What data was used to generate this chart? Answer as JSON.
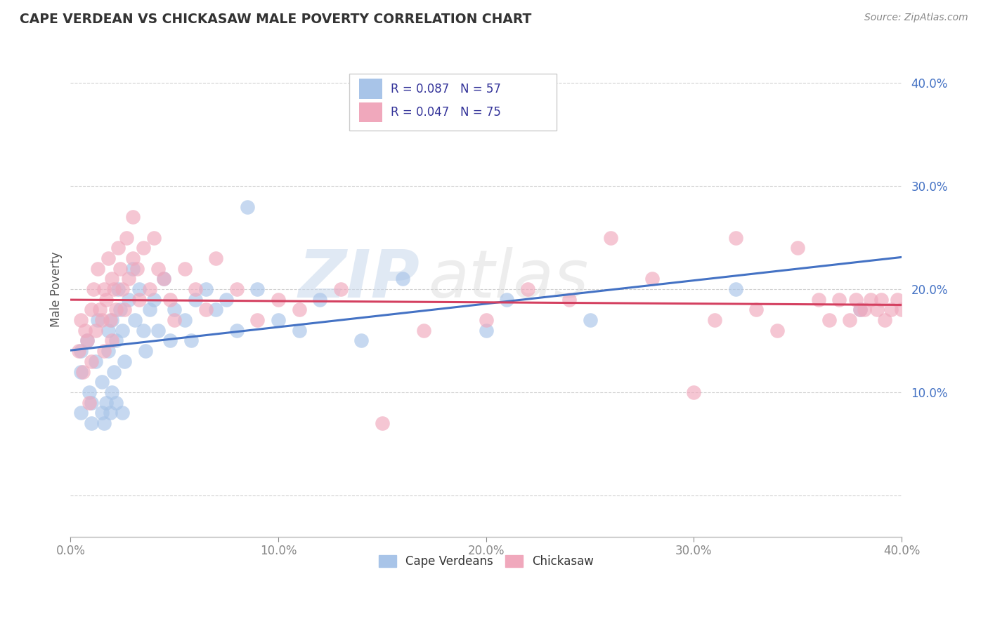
{
  "title": "CAPE VERDEAN VS CHICKASAW MALE POVERTY CORRELATION CHART",
  "source": "Source: ZipAtlas.com",
  "ylabel": "Male Poverty",
  "xlim": [
    0.0,
    0.4
  ],
  "ylim": [
    -0.04,
    0.44
  ],
  "yticks": [
    0.0,
    0.1,
    0.2,
    0.3,
    0.4
  ],
  "xticks": [
    0.0,
    0.1,
    0.2,
    0.3,
    0.4
  ],
  "xtick_labels": [
    "0.0%",
    "10.0%",
    "20.0%",
    "30.0%",
    "40.0%"
  ],
  "ytick_labels": [
    "",
    "10.0%",
    "20.0%",
    "30.0%",
    "40.0%"
  ],
  "label1": "Cape Verdeans",
  "label2": "Chickasaw",
  "color1": "#a8c4e8",
  "color2": "#f0a8bc",
  "line_color1": "#4472c4",
  "line_color2": "#d44060",
  "watermark_zip": "ZIP",
  "watermark_atlas": "atlas",
  "background_color": "#ffffff",
  "grid_color": "#cccccc",
  "blue_x": [
    0.005,
    0.005,
    0.005,
    0.008,
    0.009,
    0.01,
    0.01,
    0.012,
    0.013,
    0.015,
    0.015,
    0.016,
    0.017,
    0.018,
    0.018,
    0.019,
    0.02,
    0.02,
    0.021,
    0.022,
    0.022,
    0.023,
    0.024,
    0.025,
    0.025,
    0.026,
    0.028,
    0.03,
    0.031,
    0.033,
    0.035,
    0.036,
    0.038,
    0.04,
    0.042,
    0.045,
    0.048,
    0.05,
    0.055,
    0.058,
    0.06,
    0.065,
    0.07,
    0.075,
    0.08,
    0.085,
    0.09,
    0.1,
    0.11,
    0.12,
    0.14,
    0.16,
    0.2,
    0.21,
    0.25,
    0.32,
    0.38
  ],
  "blue_y": [
    0.14,
    0.12,
    0.08,
    0.15,
    0.1,
    0.07,
    0.09,
    0.13,
    0.17,
    0.08,
    0.11,
    0.07,
    0.09,
    0.16,
    0.14,
    0.08,
    0.1,
    0.17,
    0.12,
    0.15,
    0.09,
    0.2,
    0.18,
    0.16,
    0.08,
    0.13,
    0.19,
    0.22,
    0.17,
    0.2,
    0.16,
    0.14,
    0.18,
    0.19,
    0.16,
    0.21,
    0.15,
    0.18,
    0.17,
    0.15,
    0.19,
    0.2,
    0.18,
    0.19,
    0.16,
    0.28,
    0.2,
    0.17,
    0.16,
    0.19,
    0.15,
    0.21,
    0.16,
    0.19,
    0.17,
    0.2,
    0.18
  ],
  "pink_x": [
    0.004,
    0.005,
    0.006,
    0.007,
    0.008,
    0.009,
    0.01,
    0.01,
    0.011,
    0.012,
    0.013,
    0.014,
    0.015,
    0.016,
    0.016,
    0.017,
    0.018,
    0.019,
    0.02,
    0.02,
    0.021,
    0.022,
    0.023,
    0.024,
    0.025,
    0.026,
    0.027,
    0.028,
    0.03,
    0.03,
    0.032,
    0.033,
    0.035,
    0.038,
    0.04,
    0.042,
    0.045,
    0.048,
    0.05,
    0.055,
    0.06,
    0.065,
    0.07,
    0.08,
    0.09,
    0.1,
    0.11,
    0.13,
    0.15,
    0.17,
    0.2,
    0.22,
    0.24,
    0.26,
    0.28,
    0.3,
    0.31,
    0.32,
    0.33,
    0.34,
    0.35,
    0.36,
    0.365,
    0.37,
    0.375,
    0.378,
    0.38,
    0.382,
    0.385,
    0.388,
    0.39,
    0.392,
    0.395,
    0.398,
    0.4
  ],
  "pink_y": [
    0.14,
    0.17,
    0.12,
    0.16,
    0.15,
    0.09,
    0.18,
    0.13,
    0.2,
    0.16,
    0.22,
    0.18,
    0.17,
    0.2,
    0.14,
    0.19,
    0.23,
    0.17,
    0.21,
    0.15,
    0.2,
    0.18,
    0.24,
    0.22,
    0.2,
    0.18,
    0.25,
    0.21,
    0.27,
    0.23,
    0.22,
    0.19,
    0.24,
    0.2,
    0.25,
    0.22,
    0.21,
    0.19,
    0.17,
    0.22,
    0.2,
    0.18,
    0.23,
    0.2,
    0.17,
    0.19,
    0.18,
    0.2,
    0.07,
    0.16,
    0.17,
    0.2,
    0.19,
    0.25,
    0.21,
    0.1,
    0.17,
    0.25,
    0.18,
    0.16,
    0.24,
    0.19,
    0.17,
    0.19,
    0.17,
    0.19,
    0.18,
    0.18,
    0.19,
    0.18,
    0.19,
    0.17,
    0.18,
    0.19,
    0.18
  ]
}
